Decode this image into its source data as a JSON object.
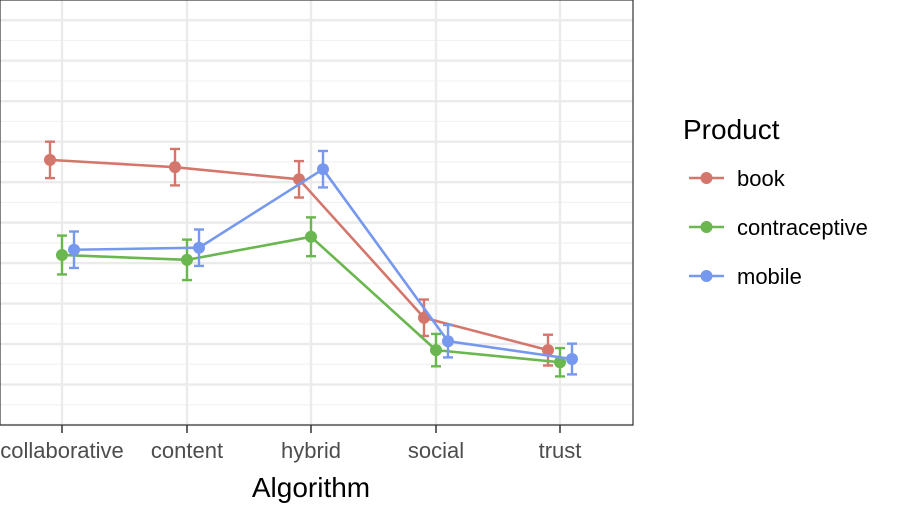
{
  "chart_data": {
    "type": "line",
    "categories": [
      "collaborative",
      "content",
      "hybrid",
      "social",
      "trust"
    ],
    "xlabel": "Algorithm",
    "ylabel": "",
    "ylim": [
      0,
      10.5
    ],
    "grid": true,
    "legend_placement": "right",
    "legend_title": "Product",
    "series": [
      {
        "name": "book",
        "color": "#d4766c",
        "values": [
          6.55,
          6.37,
          6.07,
          2.65,
          1.85
        ],
        "error": [
          0.45,
          0.45,
          0.45,
          0.45,
          0.38
        ]
      },
      {
        "name": "contraceptive",
        "color": "#6ab64f",
        "values": [
          4.2,
          4.08,
          4.65,
          1.85,
          1.55
        ],
        "error": [
          0.48,
          0.5,
          0.48,
          0.4,
          0.35
        ]
      },
      {
        "name": "mobile",
        "color": "#7698ef",
        "values": [
          4.33,
          4.38,
          6.32,
          2.07,
          1.63
        ],
        "error": [
          0.45,
          0.45,
          0.45,
          0.4,
          0.38
        ]
      }
    ]
  }
}
